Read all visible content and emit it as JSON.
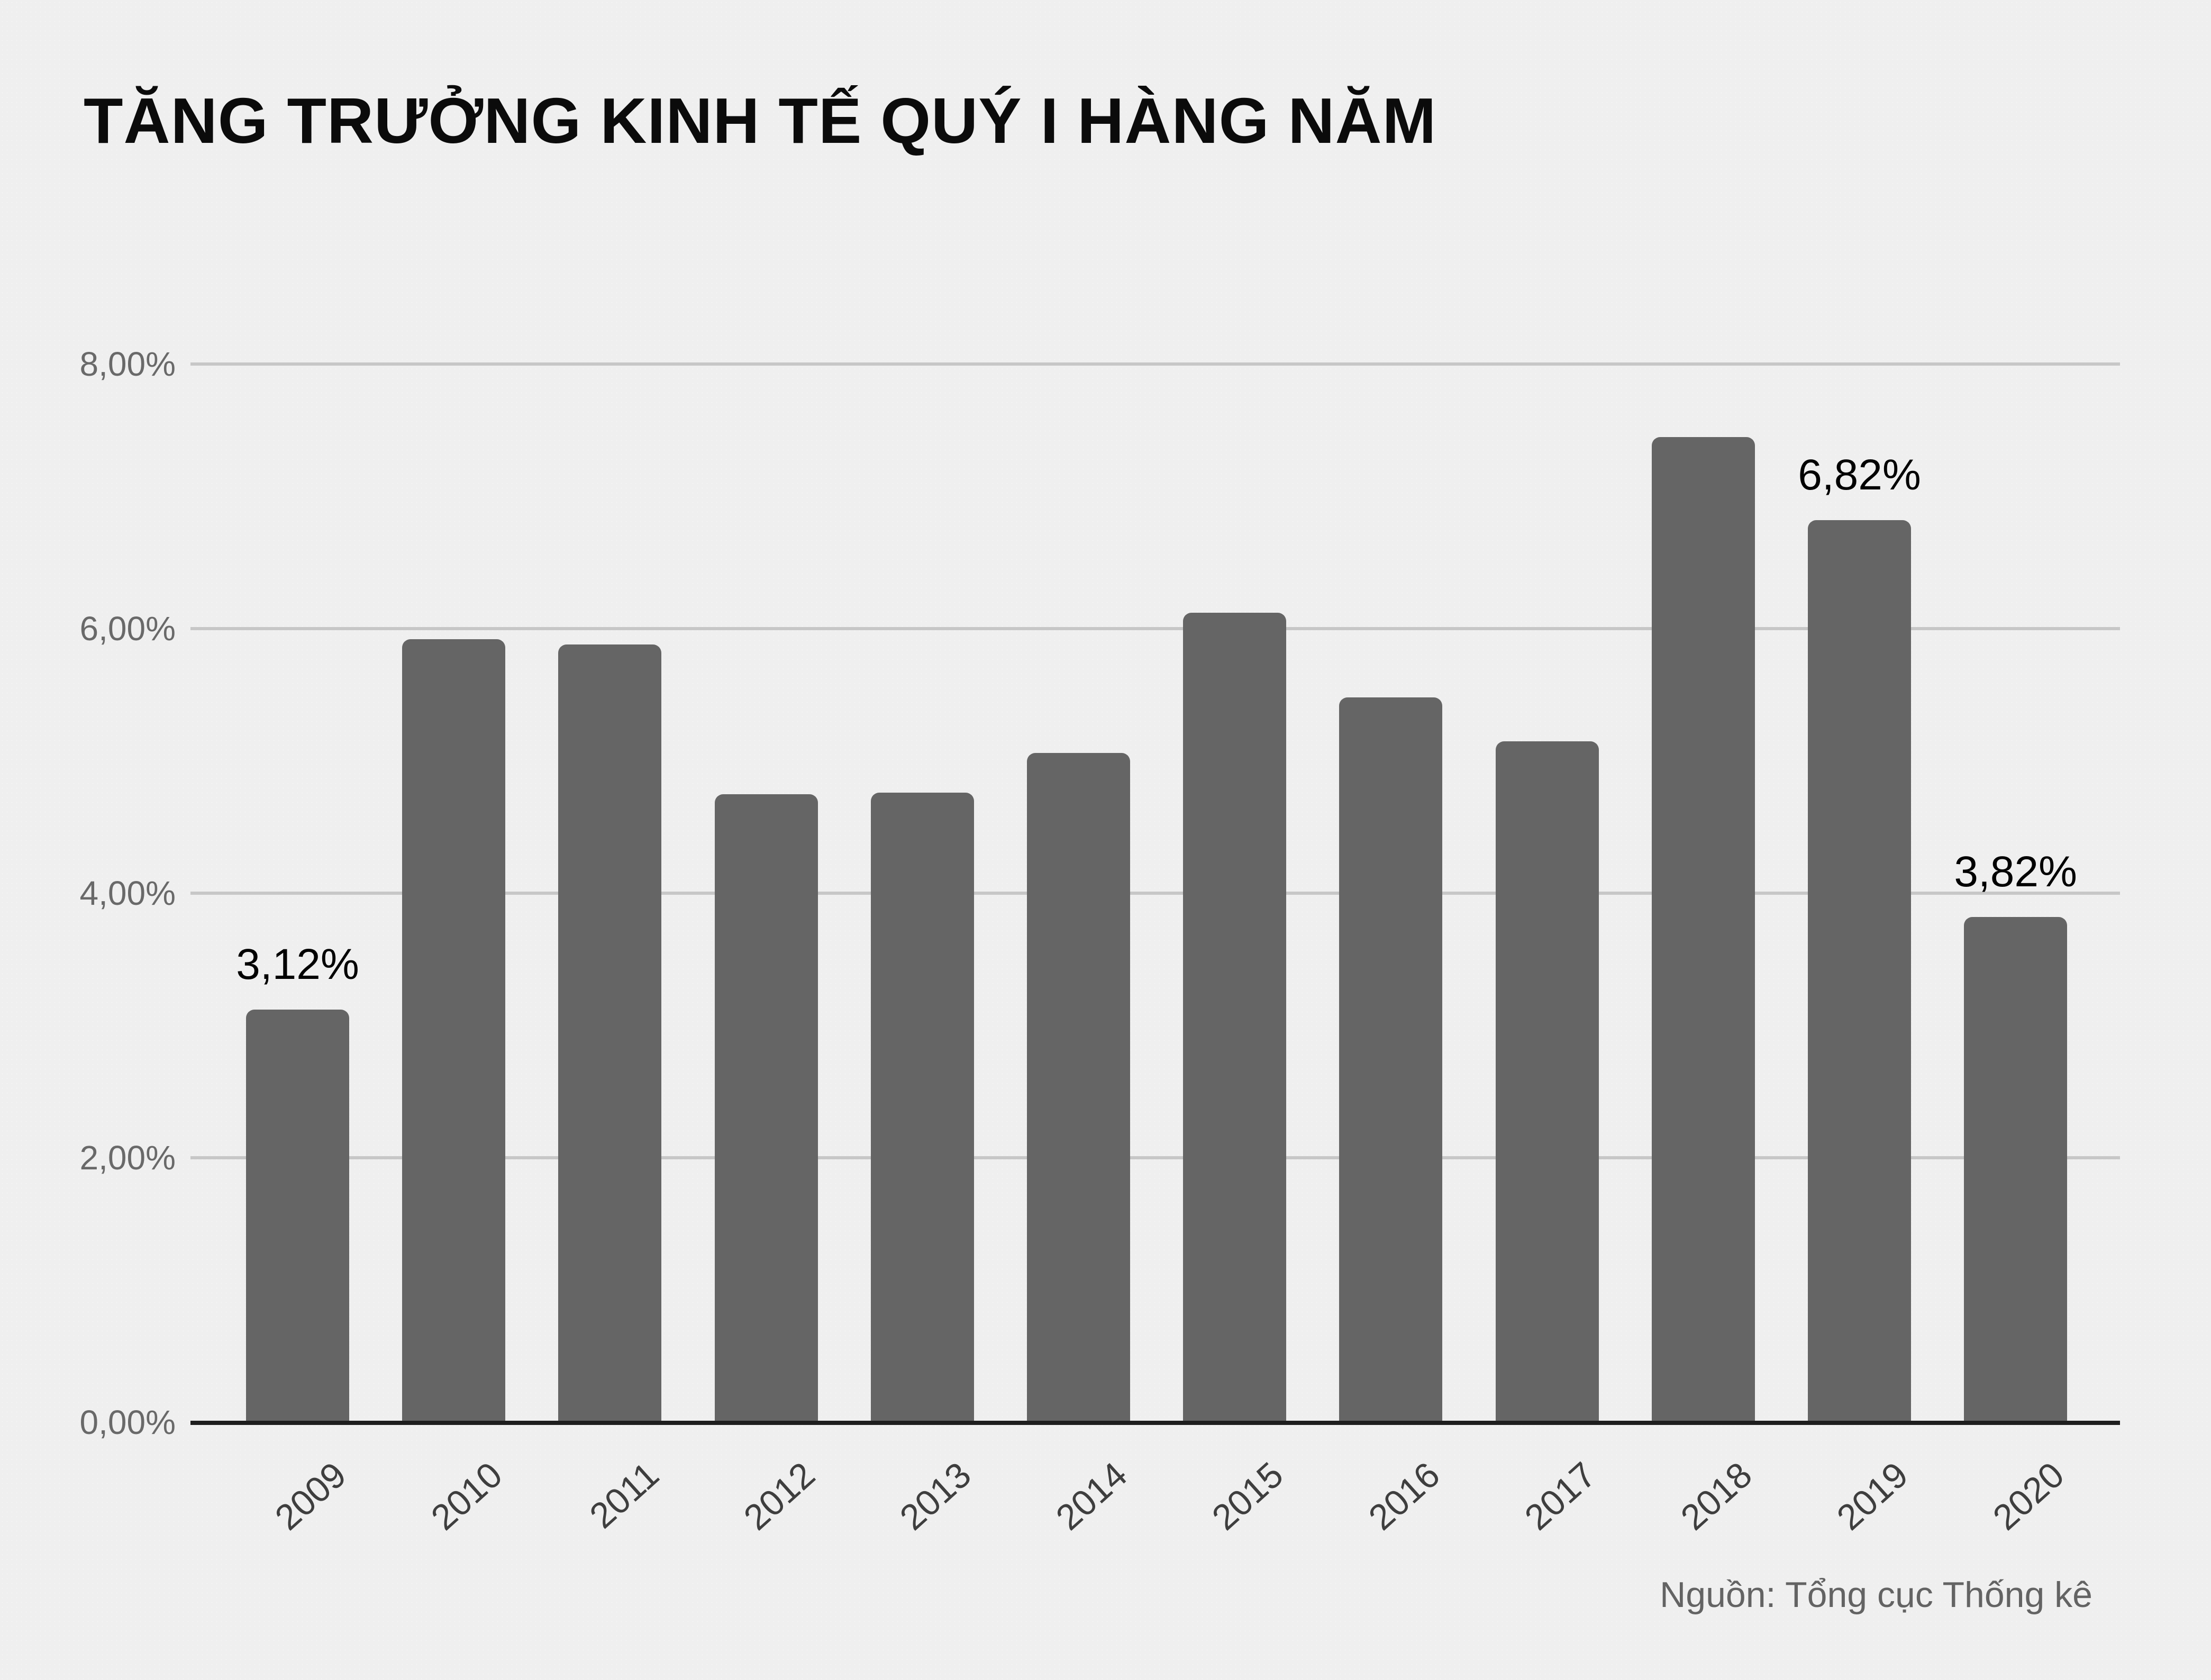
{
  "title": "TĂNG TRƯỞNG KINH TẾ QUÝ I HÀNG NĂM",
  "source": "Nguồn: Tổng cục Thống kê",
  "colors": {
    "background": "#efefef",
    "bar": "#656565",
    "gridline": "#c7c7c7",
    "axis_line": "#1e1e1e",
    "tick_label": "#696969",
    "year_label": "#3e3e3e",
    "value_label": "#000000"
  },
  "y_axis": {
    "min": 0,
    "max": 8,
    "ticks": [
      {
        "value": 8,
        "label": "8,00%"
      },
      {
        "value": 6,
        "label": "6,00%"
      },
      {
        "value": 4,
        "label": "4,00%"
      },
      {
        "value": 2,
        "label": "2,00%"
      },
      {
        "value": 0,
        "label": "0,00%"
      }
    ]
  },
  "chart_data": {
    "type": "bar",
    "title": "TĂNG TRƯỞNG KINH TẾ QUÝ I HÀNG NĂM",
    "categories": [
      "2009",
      "2010",
      "2011",
      "2012",
      "2013",
      "2014",
      "2015",
      "2016",
      "2017",
      "2018",
      "2019",
      "2020"
    ],
    "values": [
      3.12,
      5.92,
      5.88,
      4.75,
      4.76,
      5.06,
      6.12,
      5.48,
      5.15,
      7.45,
      6.82,
      3.82
    ],
    "data_labels": [
      "3,12%",
      null,
      null,
      null,
      null,
      null,
      null,
      null,
      null,
      null,
      "6,82%",
      "3,82%"
    ],
    "xlabel": "",
    "ylabel": "",
    "ylim": [
      0,
      8
    ],
    "grid": true,
    "legend": false,
    "source": "Nguồn: Tổng cục Thống kê"
  }
}
